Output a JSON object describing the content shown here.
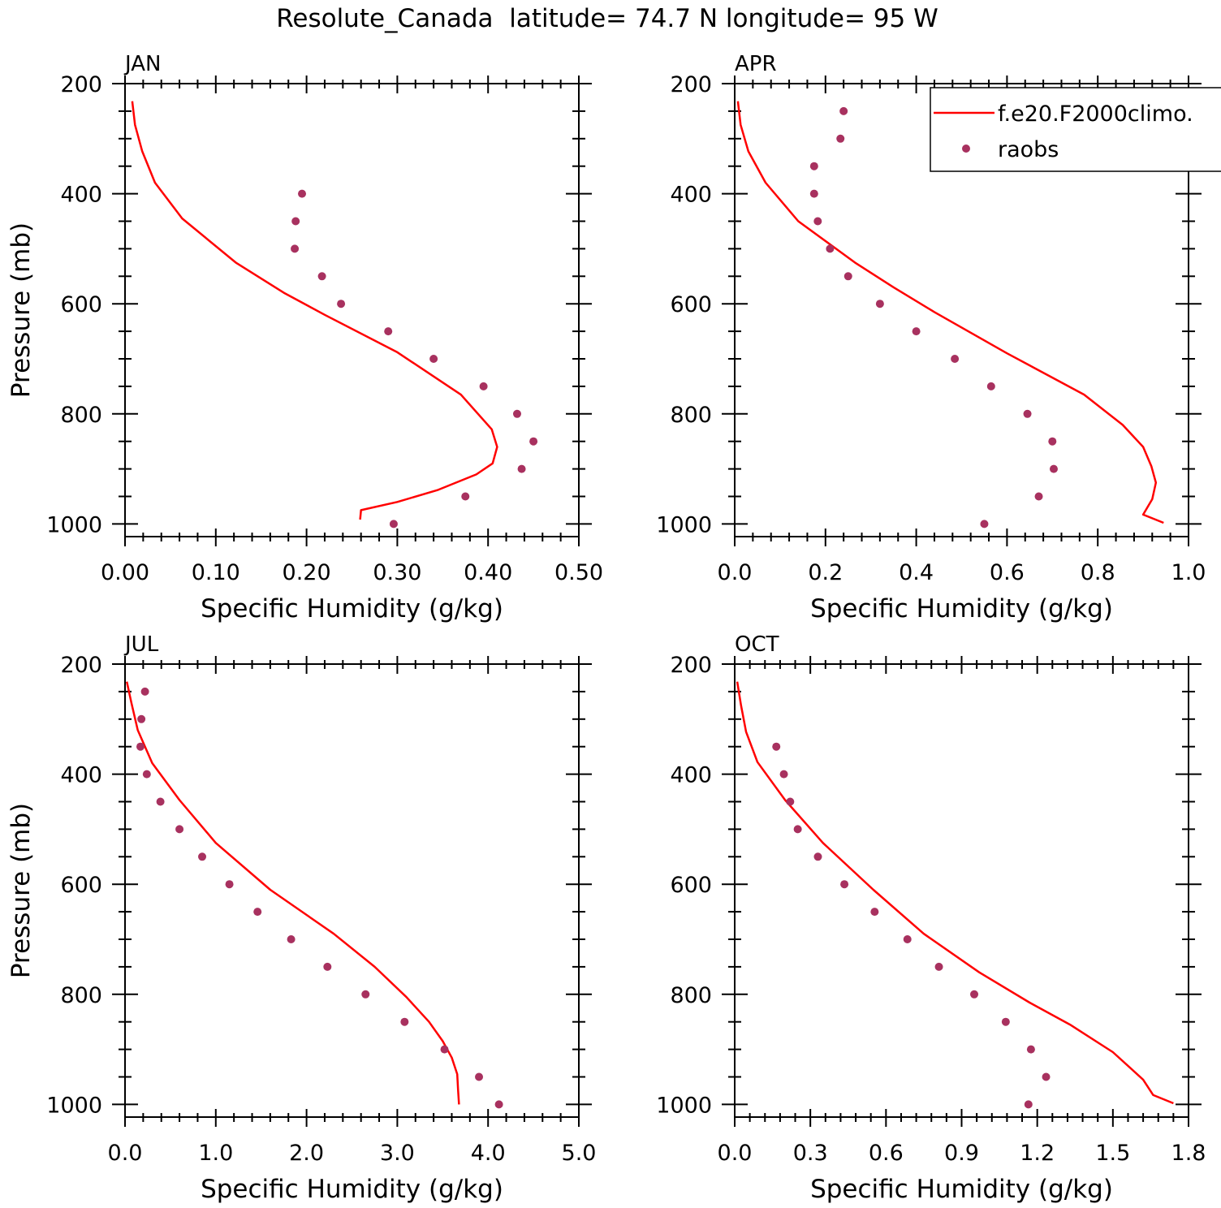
{
  "title": "Resolute_Canada  latitude= 74.7 N longitude= 95 W",
  "colors": {
    "model": "#ff0000",
    "obs": "#a8315f",
    "axis": "#000000"
  },
  "legend": {
    "placement": "top-right of APR panel",
    "entries": [
      {
        "label": "f.e20.F2000climo.",
        "style": "line"
      },
      {
        "label": "raobs",
        "style": "marker"
      }
    ]
  },
  "chart_data": [
    {
      "type": "line",
      "panel": "JAN",
      "title": "JAN",
      "xlabel": "Specific Humidity (g/kg)",
      "ylabel": "Pressure (mb)",
      "xlim": [
        0,
        0.5
      ],
      "ylim": [
        1000,
        200
      ],
      "y_inverted": true,
      "xticks": [
        0,
        0.1,
        0.2,
        0.3,
        0.4,
        0.5
      ],
      "xtick_labels": [
        "0.00",
        "0.10",
        "0.20",
        "0.30",
        "0.40",
        "0.50"
      ],
      "yticks": [
        200,
        400,
        600,
        800,
        1000
      ],
      "ytick_labels": [
        "200",
        "400",
        "600",
        "800",
        "1000"
      ],
      "series": [
        {
          "name": "f.e20.F2000climo.",
          "style": "line",
          "points": [
            [
              0.008,
              232
            ],
            [
              0.011,
              275
            ],
            [
              0.019,
              323
            ],
            [
              0.033,
              380
            ],
            [
              0.063,
              445
            ],
            [
              0.122,
              525
            ],
            [
              0.175,
              580
            ],
            [
              0.22,
              620
            ],
            [
              0.3,
              688
            ],
            [
              0.37,
              765
            ],
            [
              0.404,
              828
            ],
            [
              0.41,
              860
            ],
            [
              0.405,
              890
            ],
            [
              0.387,
              910
            ],
            [
              0.345,
              938
            ],
            [
              0.3,
              960
            ],
            [
              0.26,
              975
            ],
            [
              0.259,
              992
            ]
          ]
        },
        {
          "name": "raobs",
          "style": "marker",
          "points": [
            [
              0.195,
              400
            ],
            [
              0.188,
              450
            ],
            [
              0.187,
              500
            ],
            [
              0.217,
              550
            ],
            [
              0.238,
              600
            ],
            [
              0.29,
              650
            ],
            [
              0.34,
              700
            ],
            [
              0.395,
              750
            ],
            [
              0.432,
              800
            ],
            [
              0.45,
              850
            ],
            [
              0.437,
              900
            ],
            [
              0.375,
              950
            ],
            [
              0.296,
              1000
            ]
          ]
        }
      ]
    },
    {
      "type": "line",
      "panel": "APR",
      "title": "APR",
      "xlabel": "Specific Humidity (g/kg)",
      "ylabel": "",
      "xlim": [
        0,
        1.0
      ],
      "ylim": [
        1000,
        200
      ],
      "y_inverted": true,
      "xticks": [
        0,
        0.2,
        0.4,
        0.6,
        0.8,
        1.0
      ],
      "xtick_labels": [
        "0.0",
        "0.2",
        "0.4",
        "0.6",
        "0.8",
        "1.0"
      ],
      "yticks": [
        200,
        400,
        600,
        800,
        1000
      ],
      "ytick_labels": [
        "200",
        "400",
        "600",
        "800",
        "1000"
      ],
      "series": [
        {
          "name": "f.e20.F2000climo.",
          "style": "line",
          "points": [
            [
              0.007,
              232
            ],
            [
              0.013,
              275
            ],
            [
              0.03,
              323
            ],
            [
              0.068,
              380
            ],
            [
              0.14,
              450
            ],
            [
              0.265,
              525
            ],
            [
              0.35,
              570
            ],
            [
              0.44,
              615
            ],
            [
              0.6,
              690
            ],
            [
              0.77,
              765
            ],
            [
              0.855,
              820
            ],
            [
              0.9,
              860
            ],
            [
              0.918,
              895
            ],
            [
              0.928,
              925
            ],
            [
              0.92,
              955
            ],
            [
              0.9,
              983
            ],
            [
              0.945,
              998
            ]
          ]
        },
        {
          "name": "raobs",
          "style": "marker",
          "points": [
            [
              0.24,
              250
            ],
            [
              0.233,
              300
            ],
            [
              0.175,
              350
            ],
            [
              0.175,
              400
            ],
            [
              0.183,
              450
            ],
            [
              0.21,
              500
            ],
            [
              0.25,
              550
            ],
            [
              0.32,
              600
            ],
            [
              0.4,
              650
            ],
            [
              0.485,
              700
            ],
            [
              0.565,
              750
            ],
            [
              0.645,
              800
            ],
            [
              0.7,
              850
            ],
            [
              0.703,
              900
            ],
            [
              0.67,
              950
            ],
            [
              0.55,
              1000
            ]
          ]
        }
      ]
    },
    {
      "type": "line",
      "panel": "JUL",
      "title": "JUL",
      "xlabel": "Specific Humidity (g/kg)",
      "ylabel": "Pressure (mb)",
      "xlim": [
        0,
        5.0
      ],
      "ylim": [
        1000,
        200
      ],
      "y_inverted": true,
      "xticks": [
        0,
        1,
        2,
        3,
        4,
        5
      ],
      "xtick_labels": [
        "0.0",
        "1.0",
        "2.0",
        "3.0",
        "4.0",
        "5.0"
      ],
      "yticks": [
        200,
        400,
        600,
        800,
        1000
      ],
      "ytick_labels": [
        "200",
        "400",
        "600",
        "800",
        "1000"
      ],
      "series": [
        {
          "name": "f.e20.F2000climo.",
          "style": "line",
          "points": [
            [
              0.02,
              232
            ],
            [
              0.07,
              270
            ],
            [
              0.14,
              320
            ],
            [
              0.3,
              380
            ],
            [
              0.6,
              447
            ],
            [
              1.0,
              525
            ],
            [
              1.6,
              610
            ],
            [
              2.3,
              690
            ],
            [
              2.75,
              750
            ],
            [
              3.1,
              805
            ],
            [
              3.35,
              850
            ],
            [
              3.5,
              885
            ],
            [
              3.6,
              915
            ],
            [
              3.66,
              945
            ],
            [
              3.67,
              975
            ],
            [
              3.68,
              1000
            ]
          ]
        },
        {
          "name": "raobs",
          "style": "marker",
          "points": [
            [
              0.22,
              250
            ],
            [
              0.18,
              300
            ],
            [
              0.17,
              350
            ],
            [
              0.24,
              400
            ],
            [
              0.39,
              450
            ],
            [
              0.6,
              500
            ],
            [
              0.85,
              550
            ],
            [
              1.15,
              600
            ],
            [
              1.46,
              650
            ],
            [
              1.83,
              700
            ],
            [
              2.23,
              750
            ],
            [
              2.65,
              800
            ],
            [
              3.08,
              850
            ],
            [
              3.52,
              900
            ],
            [
              3.9,
              950
            ],
            [
              4.12,
              1000
            ]
          ]
        }
      ]
    },
    {
      "type": "line",
      "panel": "OCT",
      "title": "OCT",
      "xlabel": "Specific Humidity (g/kg)",
      "ylabel": "",
      "xlim": [
        0,
        1.8
      ],
      "ylim": [
        1000,
        200
      ],
      "y_inverted": true,
      "xticks": [
        0,
        0.3,
        0.6,
        0.9,
        1.2,
        1.5,
        1.8
      ],
      "xtick_labels": [
        "0.0",
        "0.3",
        "0.6",
        "0.9",
        "1.2",
        "1.5",
        "1.8"
      ],
      "yticks": [
        200,
        400,
        600,
        800,
        1000
      ],
      "ytick_labels": [
        "200",
        "400",
        "600",
        "800",
        "1000"
      ],
      "series": [
        {
          "name": "f.e20.F2000climo.",
          "style": "line",
          "points": [
            [
              0.01,
              232
            ],
            [
              0.025,
              275
            ],
            [
              0.045,
              323
            ],
            [
              0.09,
              378
            ],
            [
              0.2,
              447
            ],
            [
              0.35,
              525
            ],
            [
              0.55,
              610
            ],
            [
              0.75,
              690
            ],
            [
              0.97,
              760
            ],
            [
              1.17,
              815
            ],
            [
              1.33,
              855
            ],
            [
              1.5,
              905
            ],
            [
              1.62,
              955
            ],
            [
              1.66,
              983
            ],
            [
              1.74,
              998
            ]
          ]
        },
        {
          "name": "raobs",
          "style": "marker",
          "points": [
            [
              0.165,
              350
            ],
            [
              0.195,
              400
            ],
            [
              0.22,
              450
            ],
            [
              0.25,
              500
            ],
            [
              0.33,
              550
            ],
            [
              0.435,
              600
            ],
            [
              0.555,
              650
            ],
            [
              0.685,
              700
            ],
            [
              0.81,
              750
            ],
            [
              0.95,
              800
            ],
            [
              1.075,
              850
            ],
            [
              1.175,
              900
            ],
            [
              1.235,
              950
            ],
            [
              1.165,
              1000
            ]
          ]
        }
      ]
    }
  ]
}
